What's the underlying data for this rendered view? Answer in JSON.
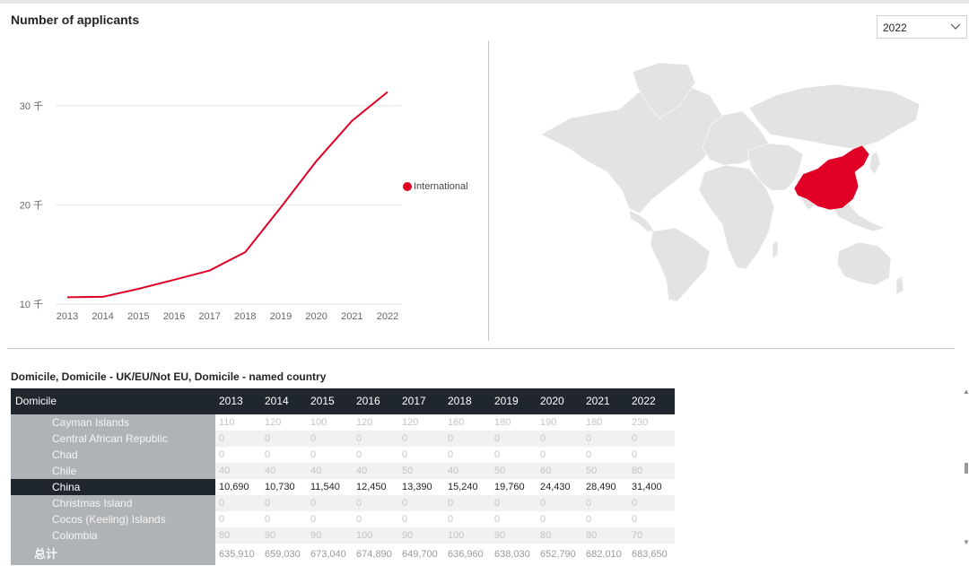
{
  "header": {
    "title": "Number of applicants",
    "year_filter": "2022"
  },
  "chart_data": {
    "type": "line",
    "x": [
      "2013",
      "2014",
      "2015",
      "2016",
      "2017",
      "2018",
      "2019",
      "2020",
      "2021",
      "2022"
    ],
    "series": [
      {
        "name": "International",
        "values": [
          10690,
          10730,
          11540,
          12450,
          13390,
          15240,
          19760,
          24430,
          28490,
          31400
        ]
      }
    ],
    "ytick_labels": [
      "10 千",
      "20 千",
      "30 千"
    ],
    "ytick_values": [
      10000,
      20000,
      30000
    ],
    "ylim": [
      10000,
      35000
    ],
    "grid": true,
    "legend": "right",
    "color": "#e00025"
  },
  "map": {
    "highlight_country": "China",
    "highlight_color": "#e00025",
    "land_color": "#e3e3e3"
  },
  "table": {
    "title": "Domicile, Domicile - UK/EU/Not EU, Domicile - named country",
    "header": "Domicile",
    "years": [
      "2013",
      "2014",
      "2015",
      "2016",
      "2017",
      "2018",
      "2019",
      "2020",
      "2021",
      "2022"
    ],
    "rows": [
      {
        "name": "Cayman Islands",
        "values": [
          "110",
          "120",
          "100",
          "120",
          "120",
          "160",
          "180",
          "190",
          "180",
          "230"
        ]
      },
      {
        "name": "Central African Republic",
        "values": [
          "0",
          "0",
          "0",
          "0",
          "0",
          "0",
          "0",
          "0",
          "0",
          "0"
        ]
      },
      {
        "name": "Chad",
        "values": [
          "0",
          "0",
          "0",
          "0",
          "0",
          "0",
          "0",
          "0",
          "0",
          "0"
        ]
      },
      {
        "name": "Chile",
        "values": [
          "40",
          "40",
          "40",
          "40",
          "50",
          "40",
          "50",
          "60",
          "50",
          "80"
        ]
      },
      {
        "name": "China",
        "values": [
          "10,690",
          "10,730",
          "11,540",
          "12,450",
          "13,390",
          "15,240",
          "19,760",
          "24,430",
          "28,490",
          "31,400"
        ],
        "selected": true
      },
      {
        "name": "Christmas Island",
        "values": [
          "0",
          "0",
          "0",
          "0",
          "0",
          "0",
          "0",
          "0",
          "0",
          "0"
        ]
      },
      {
        "name": "Cocos (Keeling) Islands",
        "values": [
          "0",
          "0",
          "0",
          "0",
          "0",
          "0",
          "0",
          "0",
          "0",
          "0"
        ]
      },
      {
        "name": "Colombia",
        "values": [
          "80",
          "90",
          "90",
          "100",
          "90",
          "100",
          "90",
          "80",
          "80",
          "70"
        ]
      }
    ],
    "total": {
      "name": "总计",
      "values": [
        "635,910",
        "659,030",
        "673,040",
        "674,890",
        "649,700",
        "636,960",
        "638,030",
        "652,790",
        "682,010",
        "683,650"
      ]
    }
  }
}
